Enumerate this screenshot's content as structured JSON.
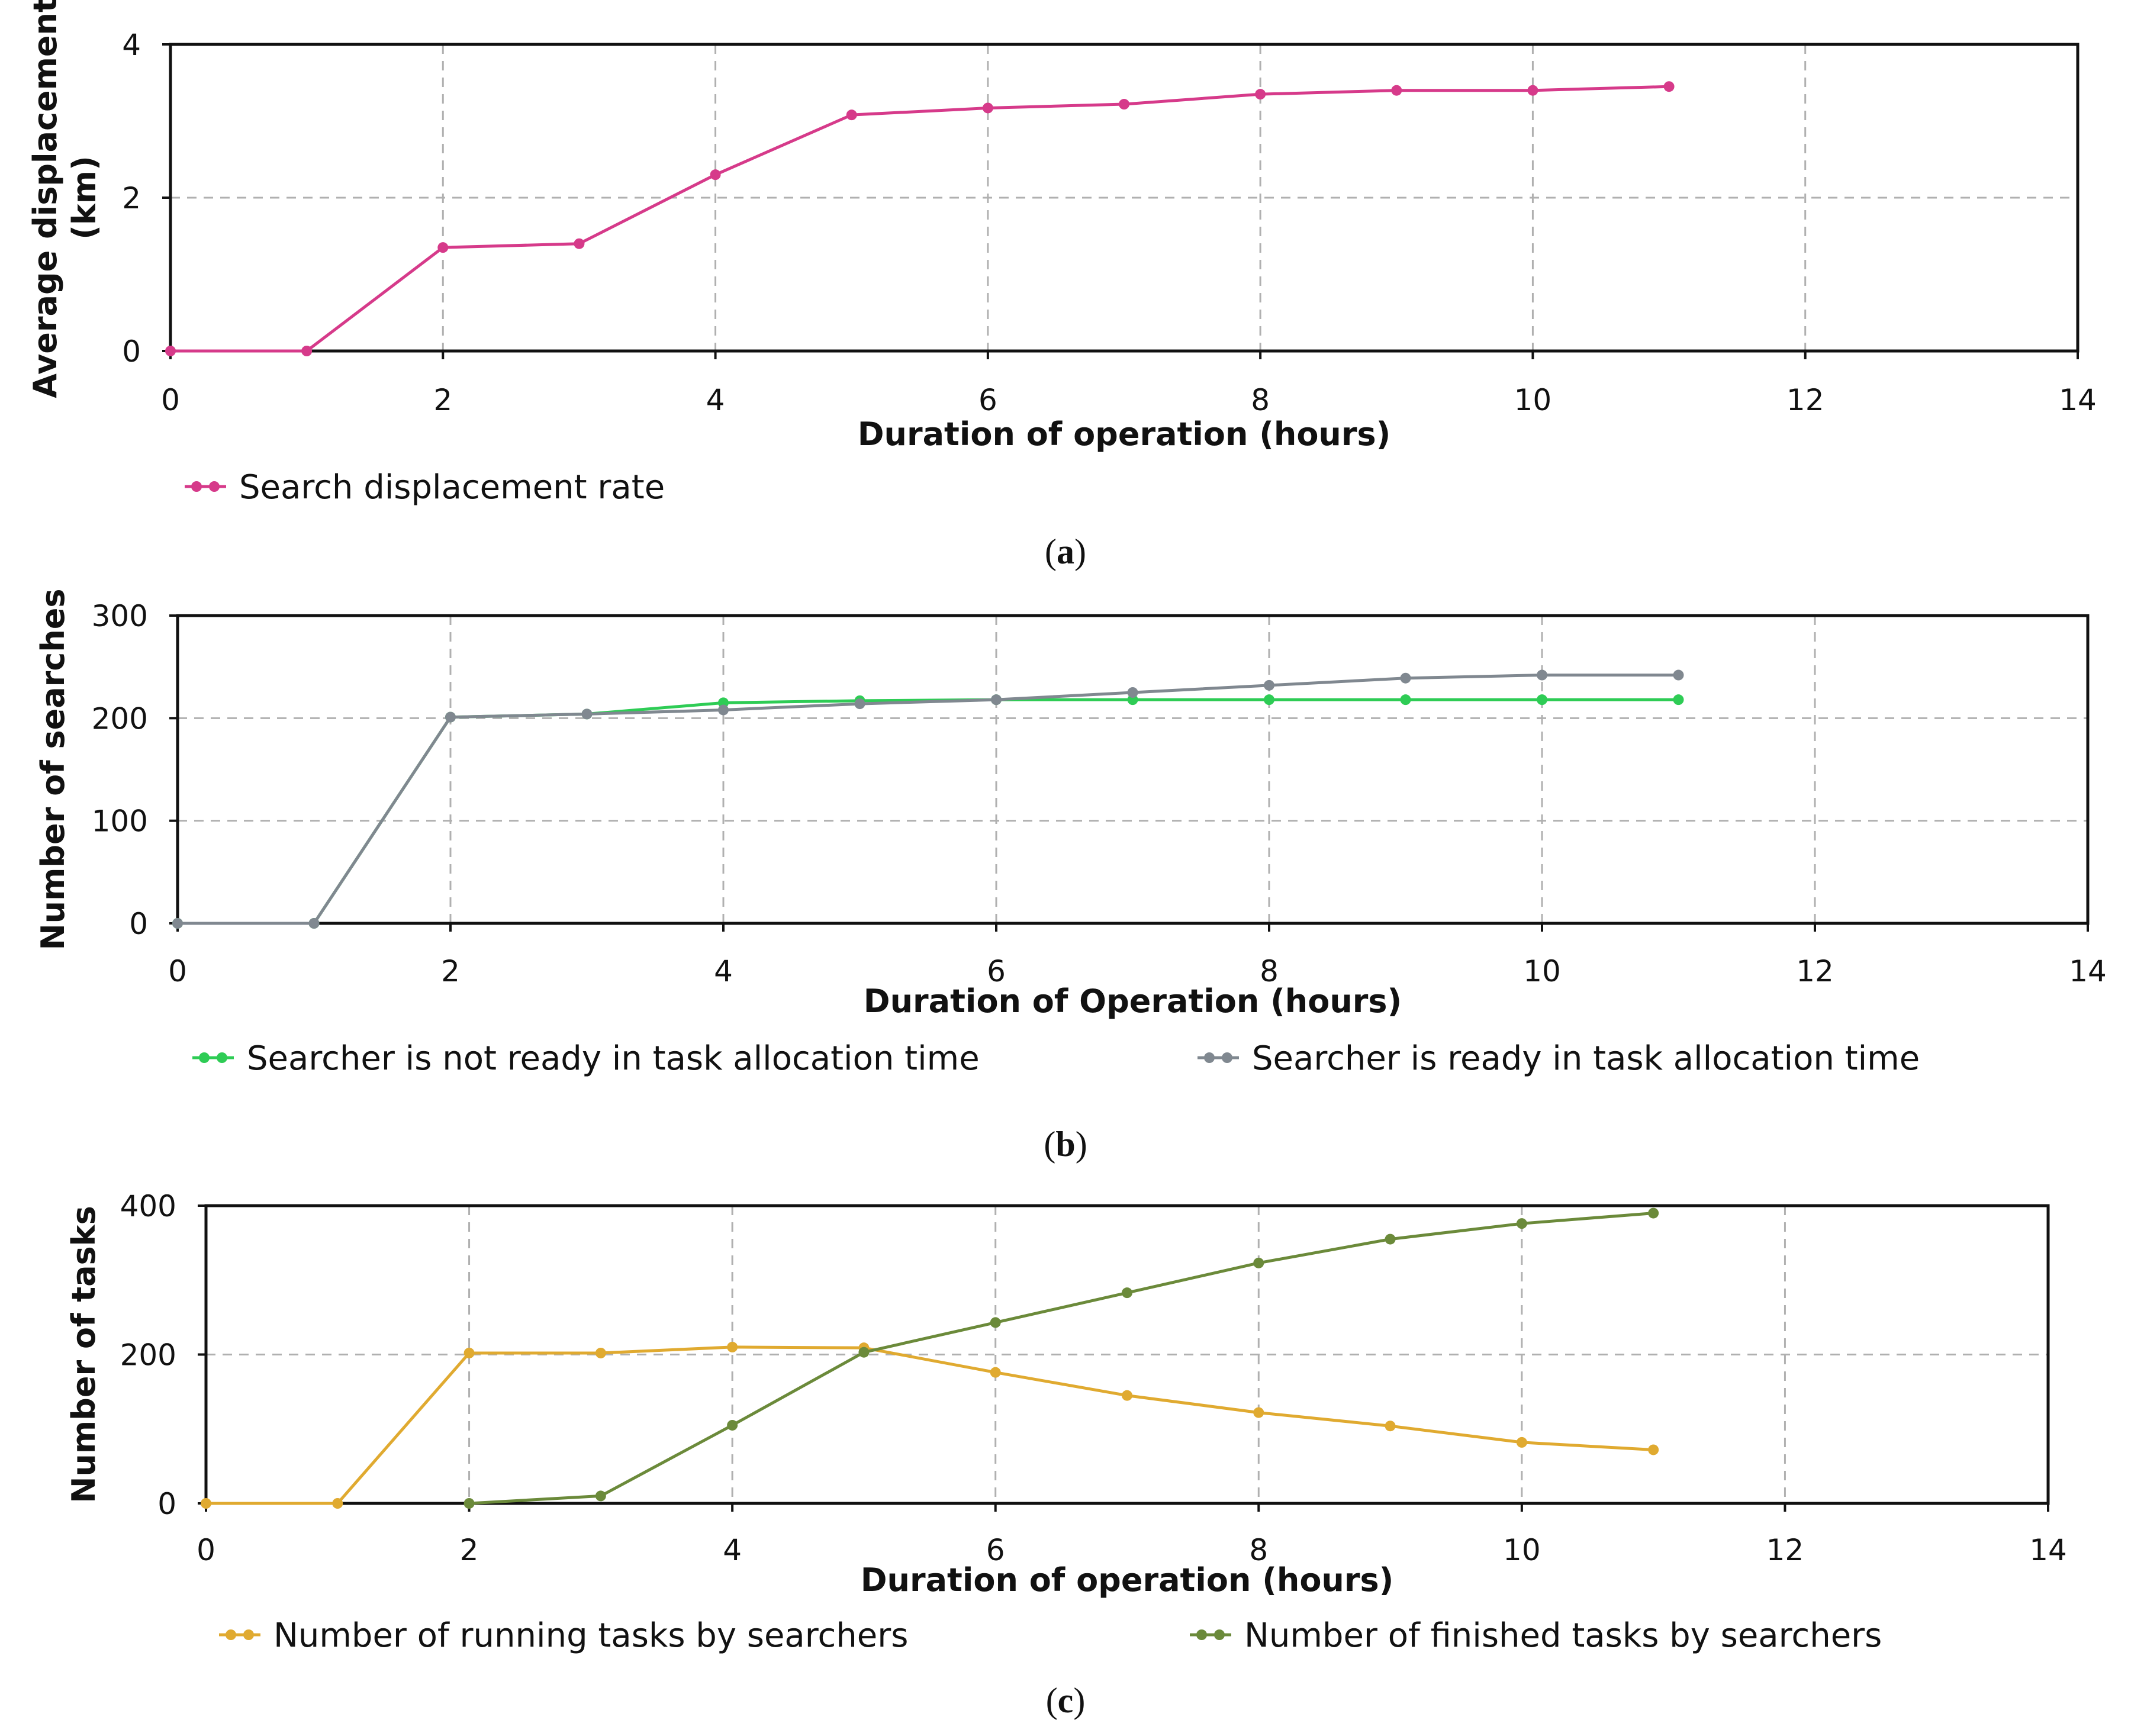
{
  "chart_data": [
    {
      "type": "line",
      "caption": "a",
      "xlabel": "Duration of operation (hours)",
      "ylabel": [
        "Average displacement",
        "(km)"
      ],
      "xlim": [
        0,
        14
      ],
      "ylim": [
        0,
        4
      ],
      "xticks": [
        0,
        2,
        4,
        6,
        8,
        10,
        12,
        14
      ],
      "yticks": [
        0,
        2,
        4
      ],
      "grid": true,
      "legend_position": "bottom-left",
      "series": [
        {
          "name": "Search displacement rate",
          "color": "#d63a8a",
          "x": [
            0,
            1,
            2,
            3,
            4,
            5,
            6,
            7,
            8,
            9,
            10,
            11
          ],
          "y": [
            0,
            0,
            1.35,
            1.4,
            2.3,
            3.08,
            3.17,
            3.22,
            3.35,
            3.4,
            3.4,
            3.45
          ]
        }
      ]
    },
    {
      "type": "line",
      "caption": "b",
      "xlabel": "Duration of Operation (hours)",
      "ylabel": [
        "Number of searches"
      ],
      "xlim": [
        0,
        14
      ],
      "ylim": [
        0,
        300
      ],
      "xticks": [
        0,
        2,
        4,
        6,
        8,
        10,
        12,
        14
      ],
      "yticks": [
        0,
        100,
        200,
        300
      ],
      "grid": true,
      "legend_position": "bottom",
      "series": [
        {
          "name": "Searcher is not ready in task allocation time",
          "color": "#2ecc55",
          "x": [
            0,
            1,
            2,
            3,
            4,
            5,
            6,
            7,
            8,
            9,
            10,
            11
          ],
          "y": [
            0,
            0,
            201,
            204,
            215,
            217,
            218,
            218,
            218,
            218,
            218,
            218
          ]
        },
        {
          "name": "Searcher is ready in task allocation time",
          "color": "#808890",
          "x": [
            0,
            1,
            2,
            3,
            4,
            5,
            6,
            7,
            8,
            9,
            10,
            11
          ],
          "y": [
            0,
            0,
            201,
            204,
            208,
            214,
            218,
            225,
            232,
            239,
            242,
            242
          ]
        }
      ]
    },
    {
      "type": "line",
      "caption": "c",
      "xlabel": "Duration of operation (hours)",
      "ylabel": [
        "Number of tasks"
      ],
      "xlim": [
        0,
        14
      ],
      "ylim": [
        0,
        400
      ],
      "xticks": [
        0,
        2,
        4,
        6,
        8,
        10,
        12,
        14
      ],
      "yticks": [
        0,
        200,
        400
      ],
      "grid": true,
      "legend_position": "bottom",
      "series": [
        {
          "name": "Number of running tasks by searchers",
          "color": "#e0aa30",
          "x": [
            0,
            1,
            2,
            3,
            4,
            5,
            6,
            7,
            8,
            9,
            10,
            11
          ],
          "y": [
            0,
            0,
            202,
            202,
            210,
            209,
            176,
            145,
            122,
            104,
            82,
            72
          ]
        },
        {
          "name": "Number of finished tasks by searchers",
          "color": "#6b8a3a",
          "x": [
            2,
            3,
            4,
            5,
            6,
            7,
            8,
            9,
            10,
            11
          ],
          "y": [
            0,
            10,
            105,
            203,
            243,
            283,
            323,
            355,
            376,
            390
          ]
        }
      ]
    }
  ]
}
